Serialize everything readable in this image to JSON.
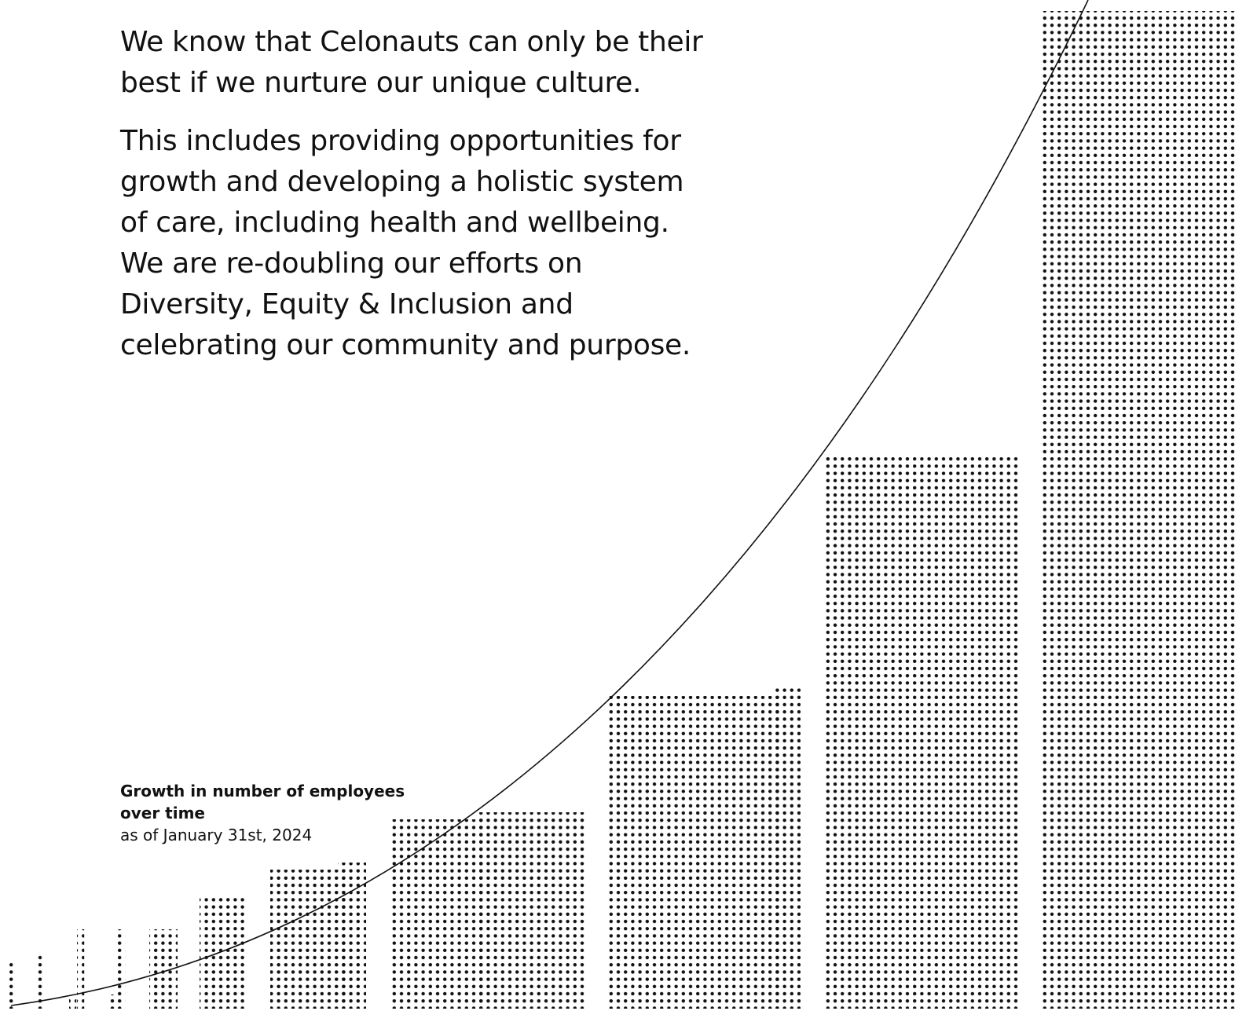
{
  "paragraphs": [
    "We know that Celonauts can only be their best if we nurture our unique culture.",
    "This includes providing opportunities for growth and developing a holistic system of care, including health and wellbeing. We are re-doubling our efforts on Diversity, Equity & Inclusion and celebrating our community and purpose."
  ],
  "caption": {
    "title": "Growth in number of employees over time",
    "subtitle": "as of January 31st, 2024"
  }
}
